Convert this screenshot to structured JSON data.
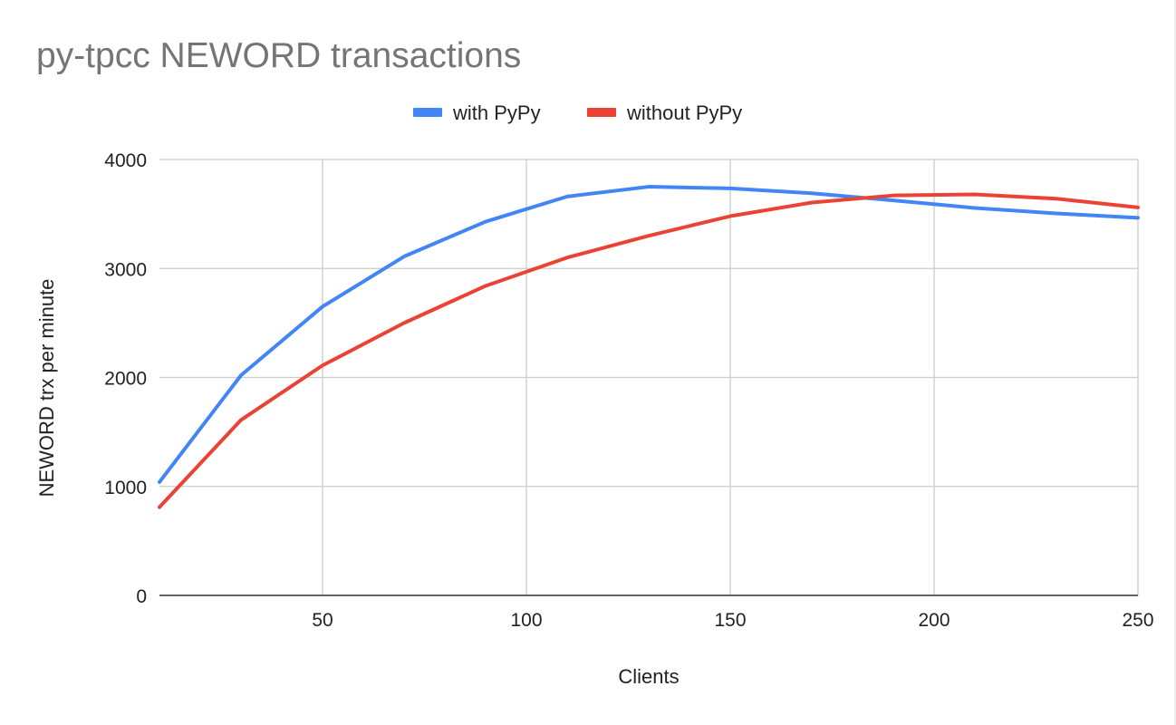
{
  "chart_data": {
    "type": "line",
    "title": "py-tpcc NEWORD transactions",
    "xlabel": "Clients",
    "ylabel": "NEWORD trx per minute",
    "xlim": [
      10,
      250
    ],
    "ylim": [
      0,
      4000
    ],
    "x_ticks": [
      50,
      100,
      150,
      200,
      250
    ],
    "x_tick_labels": [
      "50",
      "100",
      "150",
      "200",
      "250"
    ],
    "y_ticks": [
      0,
      1000,
      2000,
      3000,
      4000
    ],
    "y_tick_labels": [
      "0",
      "1000",
      "2000",
      "3000",
      "4000"
    ],
    "grid": true,
    "legend_position": "top",
    "x": [
      10,
      30,
      50,
      70,
      90,
      110,
      130,
      150,
      170,
      190,
      210,
      230,
      250
    ],
    "series": [
      {
        "name": "with PyPy",
        "color": "#4285f4",
        "values": [
          1040,
          2020,
          2650,
          3110,
          3430,
          3660,
          3750,
          3735,
          3690,
          3625,
          3555,
          3505,
          3465
        ]
      },
      {
        "name": "without PyPy",
        "color": "#ea4335",
        "values": [
          810,
          1610,
          2110,
          2500,
          2840,
          3100,
          3300,
          3480,
          3605,
          3670,
          3680,
          3640,
          3560
        ]
      }
    ],
    "colors": {
      "title": "#757575",
      "text": "#222222",
      "grid": "#cccccc",
      "axis": "#333333"
    }
  }
}
